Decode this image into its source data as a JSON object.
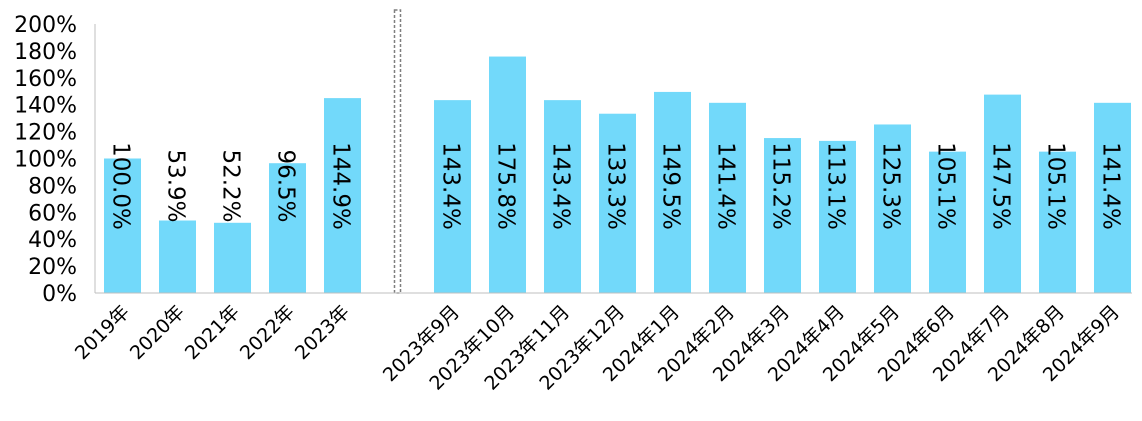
{
  "chart_data": {
    "type": "bar",
    "categories": [
      "2019年",
      "2020年",
      "2021年",
      "2022年",
      "2023年",
      "",
      "2023年9月",
      "2023年10月",
      "2023年11月",
      "2023年12月",
      "2024年1月",
      "2024年2月",
      "2024年3月",
      "2024年4月",
      "2024年5月",
      "2024年6月",
      "2024年7月",
      "2024年8月",
      "2024年9月"
    ],
    "values": [
      100.0,
      53.9,
      52.2,
      96.5,
      144.9,
      null,
      143.4,
      175.8,
      143.4,
      133.3,
      149.5,
      141.4,
      115.2,
      113.1,
      125.3,
      105.1,
      147.5,
      105.1,
      141.4
    ],
    "data_labels": [
      "100.0%",
      "53.9%",
      "52.2%",
      "96.5%",
      "144.9%",
      "",
      "143.4%",
      "175.8%",
      "143.4%",
      "133.3%",
      "149.5%",
      "141.4%",
      "115.2%",
      "113.1%",
      "125.3%",
      "105.1%",
      "147.5%",
      "105.1%",
      "141.4%"
    ],
    "y_ticks": [
      "0%",
      "20%",
      "40%",
      "60%",
      "80%",
      "100%",
      "120%",
      "140%",
      "160%",
      "180%",
      "200%"
    ],
    "ylim": [
      0,
      200
    ],
    "grid": false,
    "separator_after_category": "2023年",
    "colors": {
      "bar": "#72D9FA",
      "axis": "#bfbfbf",
      "separator": "#7f7f7f",
      "text": "#000000"
    }
  }
}
